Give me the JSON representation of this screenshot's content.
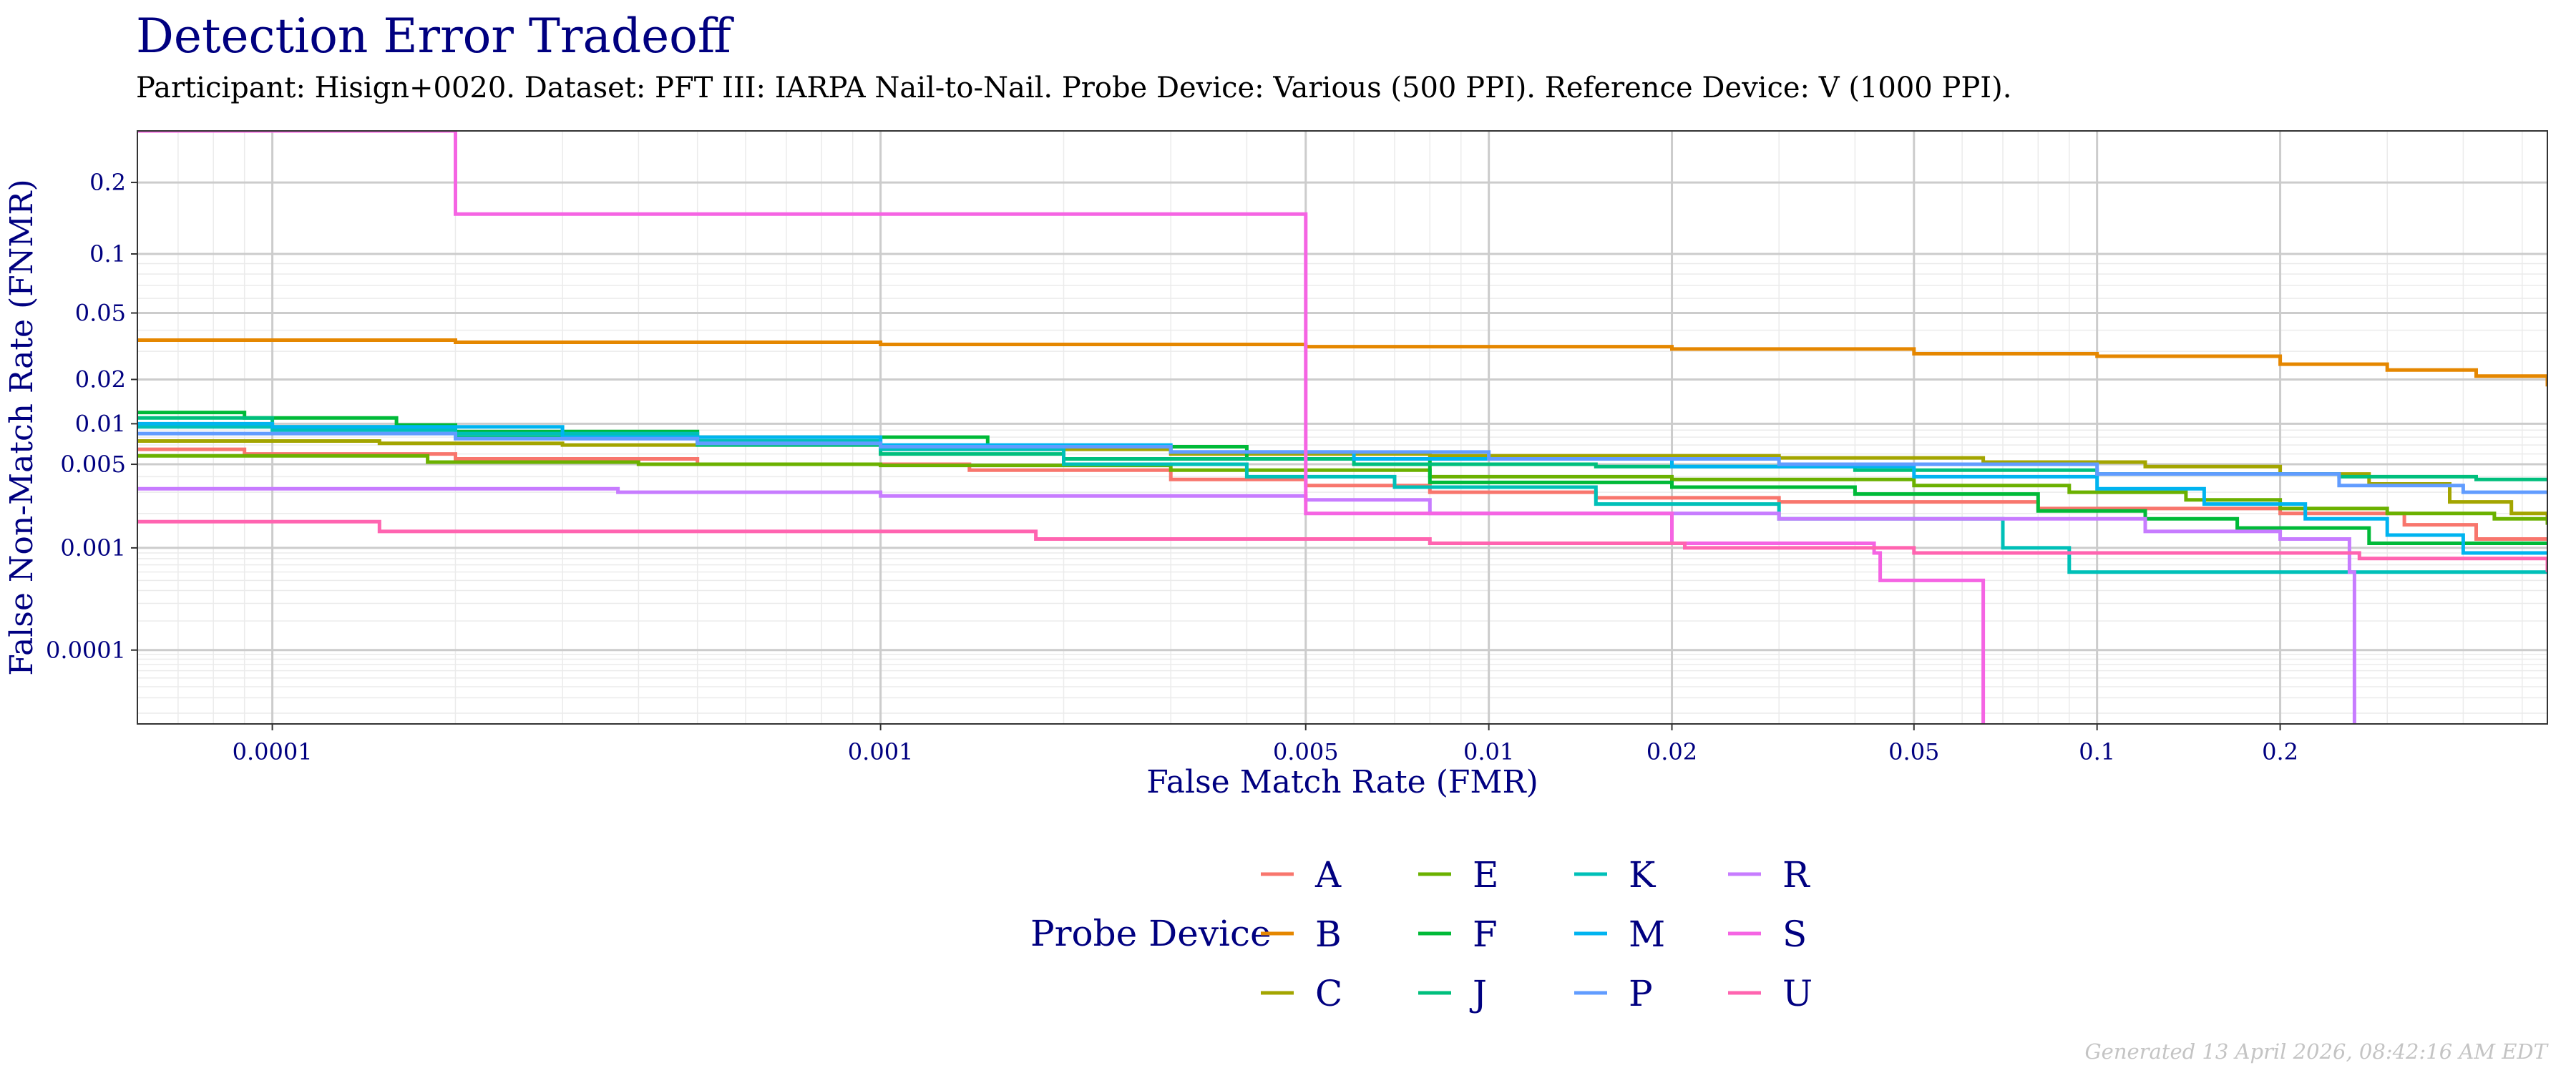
{
  "chart_data": {
    "type": "line",
    "title": "Detection Error Tradeoff",
    "subtitle": "Participant: Hisign+0020. Dataset: PFT III: IARPA Nail-to-Nail. Probe Device: Various (500 PPI). Reference Device: V (1000 PPI).",
    "xlabel": "False Match Rate (FMR)",
    "ylabel": "False Non-Match Rate (FNMR)",
    "x_scale": "log",
    "y_scale": "probit",
    "xlim": [
      6e-05,
      0.55
    ],
    "ylim": [
      1.5e-05,
      0.3
    ],
    "x_ticks": [
      0.0001,
      0.001,
      0.005,
      0.01,
      0.02,
      0.05,
      0.1,
      0.2
    ],
    "x_tick_labels": [
      "0.0001",
      "0.001",
      "0.005",
      "0.01",
      "0.02",
      "0.05",
      "0.1",
      "0.2"
    ],
    "y_ticks": [
      0.0001,
      0.001,
      0.005,
      0.01,
      0.02,
      0.05,
      0.1,
      0.2
    ],
    "y_tick_labels": [
      "0.0001",
      "0.001",
      "0.005",
      "0.01",
      "0.02",
      "0.05",
      "0.1",
      "0.2"
    ],
    "grid": true,
    "legend_title": "Probe Device",
    "legend_position": "bottom",
    "series": [
      {
        "name": "A",
        "color": "#F8766D",
        "points": [
          [
            6e-05,
            0.0065
          ],
          [
            9e-05,
            0.006
          ],
          [
            0.0002,
            0.0055
          ],
          [
            0.0005,
            0.005
          ],
          [
            0.0014,
            0.0045
          ],
          [
            0.003,
            0.0038
          ],
          [
            0.005,
            0.0034
          ],
          [
            0.008,
            0.003
          ],
          [
            0.015,
            0.0027
          ],
          [
            0.03,
            0.0025
          ],
          [
            0.08,
            0.0022
          ],
          [
            0.2,
            0.002
          ],
          [
            0.32,
            0.0016
          ],
          [
            0.42,
            0.0012
          ],
          [
            0.55,
            0.0012
          ]
        ]
      },
      {
        "name": "B",
        "color": "#E58700",
        "points": [
          [
            6e-05,
            0.035
          ],
          [
            0.0002,
            0.034
          ],
          [
            0.001,
            0.033
          ],
          [
            0.005,
            0.032
          ],
          [
            0.02,
            0.031
          ],
          [
            0.05,
            0.029
          ],
          [
            0.1,
            0.028
          ],
          [
            0.2,
            0.025
          ],
          [
            0.3,
            0.023
          ],
          [
            0.42,
            0.021
          ],
          [
            0.55,
            0.018
          ]
        ]
      },
      {
        "name": "C",
        "color": "#A3A500",
        "points": [
          [
            6e-05,
            0.0075
          ],
          [
            0.00015,
            0.0072
          ],
          [
            0.0003,
            0.007
          ],
          [
            0.001,
            0.0065
          ],
          [
            0.003,
            0.006
          ],
          [
            0.008,
            0.0058
          ],
          [
            0.03,
            0.0056
          ],
          [
            0.065,
            0.0052
          ],
          [
            0.12,
            0.0048
          ],
          [
            0.2,
            0.0042
          ],
          [
            0.28,
            0.0035
          ],
          [
            0.38,
            0.0025
          ],
          [
            0.48,
            0.002
          ],
          [
            0.55,
            0.0018
          ]
        ]
      },
      {
        "name": "E",
        "color": "#6BB100",
        "points": [
          [
            6e-05,
            0.0058
          ],
          [
            0.00018,
            0.0052
          ],
          [
            0.0004,
            0.005
          ],
          [
            0.001,
            0.0049
          ],
          [
            0.003,
            0.0045
          ],
          [
            0.008,
            0.004
          ],
          [
            0.02,
            0.0038
          ],
          [
            0.05,
            0.0034
          ],
          [
            0.09,
            0.003
          ],
          [
            0.14,
            0.0026
          ],
          [
            0.2,
            0.0022
          ],
          [
            0.3,
            0.002
          ],
          [
            0.45,
            0.0018
          ],
          [
            0.55,
            0.0016
          ]
        ]
      },
      {
        "name": "F",
        "color": "#00BA38",
        "points": [
          [
            6e-05,
            0.012
          ],
          [
            9e-05,
            0.011
          ],
          [
            0.00016,
            0.0098
          ],
          [
            0.0002,
            0.0088
          ],
          [
            0.0005,
            0.008
          ],
          [
            0.0015,
            0.0068
          ],
          [
            0.004,
            0.0055
          ],
          [
            0.008,
            0.0036
          ],
          [
            0.02,
            0.0033
          ],
          [
            0.04,
            0.0029
          ],
          [
            0.08,
            0.0021
          ],
          [
            0.12,
            0.0018
          ],
          [
            0.17,
            0.0015
          ],
          [
            0.28,
            0.0011
          ],
          [
            0.42,
            0.0011
          ],
          [
            0.55,
            0.0011
          ]
        ]
      },
      {
        "name": "J",
        "color": "#00BF7D",
        "points": [
          [
            6e-05,
            0.011
          ],
          [
            0.0001,
            0.0095
          ],
          [
            0.0002,
            0.008
          ],
          [
            0.0005,
            0.007
          ],
          [
            0.001,
            0.006
          ],
          [
            0.002,
            0.0055
          ],
          [
            0.006,
            0.005
          ],
          [
            0.015,
            0.0048
          ],
          [
            0.04,
            0.0045
          ],
          [
            0.1,
            0.0042
          ],
          [
            0.25,
            0.004
          ],
          [
            0.42,
            0.0038
          ],
          [
            0.55,
            0.0038
          ]
        ]
      },
      {
        "name": "K",
        "color": "#00C0B8",
        "points": [
          [
            6e-05,
            0.0095
          ],
          [
            0.0001,
            0.009
          ],
          [
            0.0002,
            0.0085
          ],
          [
            0.0005,
            0.0075
          ],
          [
            0.001,
            0.0065
          ],
          [
            0.002,
            0.005
          ],
          [
            0.004,
            0.004
          ],
          [
            0.007,
            0.0033
          ],
          [
            0.015,
            0.0024
          ],
          [
            0.03,
            0.0018
          ],
          [
            0.06,
            0.0018
          ],
          [
            0.07,
            0.001
          ],
          [
            0.09,
            0.0006
          ],
          [
            0.2,
            0.0006
          ],
          [
            0.55,
            0.0006
          ]
        ]
      },
      {
        "name": "M",
        "color": "#00B4F0",
        "points": [
          [
            6e-05,
            0.01
          ],
          [
            0.0001,
            0.0095
          ],
          [
            0.0003,
            0.008
          ],
          [
            0.001,
            0.007
          ],
          [
            0.003,
            0.0062
          ],
          [
            0.006,
            0.0055
          ],
          [
            0.02,
            0.0048
          ],
          [
            0.05,
            0.004
          ],
          [
            0.1,
            0.0032
          ],
          [
            0.15,
            0.0024
          ],
          [
            0.22,
            0.0018
          ],
          [
            0.3,
            0.0013
          ],
          [
            0.4,
            0.0009
          ],
          [
            0.55,
            0.0009
          ]
        ]
      },
      {
        "name": "P",
        "color": "#619CFF",
        "points": [
          [
            6e-05,
            0.0085
          ],
          [
            0.0002,
            0.0078
          ],
          [
            0.0005,
            0.0072
          ],
          [
            0.001,
            0.0068
          ],
          [
            0.003,
            0.0062
          ],
          [
            0.01,
            0.0055
          ],
          [
            0.03,
            0.005
          ],
          [
            0.1,
            0.0042
          ],
          [
            0.25,
            0.0034
          ],
          [
            0.4,
            0.003
          ],
          [
            0.55,
            0.0029
          ]
        ]
      },
      {
        "name": "R",
        "color": "#C77CFF",
        "points": [
          [
            6e-05,
            0.0032
          ],
          [
            0.00037,
            0.003
          ],
          [
            0.001,
            0.0028
          ],
          [
            0.005,
            0.0026
          ],
          [
            0.008,
            0.002
          ],
          [
            0.03,
            0.0018
          ],
          [
            0.12,
            0.0014
          ],
          [
            0.2,
            0.0012
          ],
          [
            0.26,
            0.0006
          ],
          [
            0.265,
            1e-05
          ]
        ]
      },
      {
        "name": "S",
        "color": "#F564E3",
        "points": [
          [
            6e-05,
            0.3
          ],
          [
            0.0002,
            0.15
          ],
          [
            0.005,
            0.002
          ],
          [
            0.02,
            0.0011
          ],
          [
            0.043,
            0.0009
          ],
          [
            0.044,
            0.0005
          ],
          [
            0.064,
            0.0005
          ],
          [
            0.065,
            1e-05
          ]
        ]
      },
      {
        "name": "U",
        "color": "#FF64B0",
        "points": [
          [
            6e-05,
            0.0017
          ],
          [
            0.00015,
            0.0014
          ],
          [
            0.0005,
            0.0014
          ],
          [
            0.0018,
            0.0012
          ],
          [
            0.004,
            0.0012
          ],
          [
            0.008,
            0.0011
          ],
          [
            0.021,
            0.001
          ],
          [
            0.05,
            0.0009
          ],
          [
            0.1,
            0.0009
          ],
          [
            0.27,
            0.0008
          ],
          [
            0.55,
            0.0006
          ]
        ]
      }
    ]
  },
  "footer": "Generated 13 April 2026, 08:42:16 AM EDT"
}
